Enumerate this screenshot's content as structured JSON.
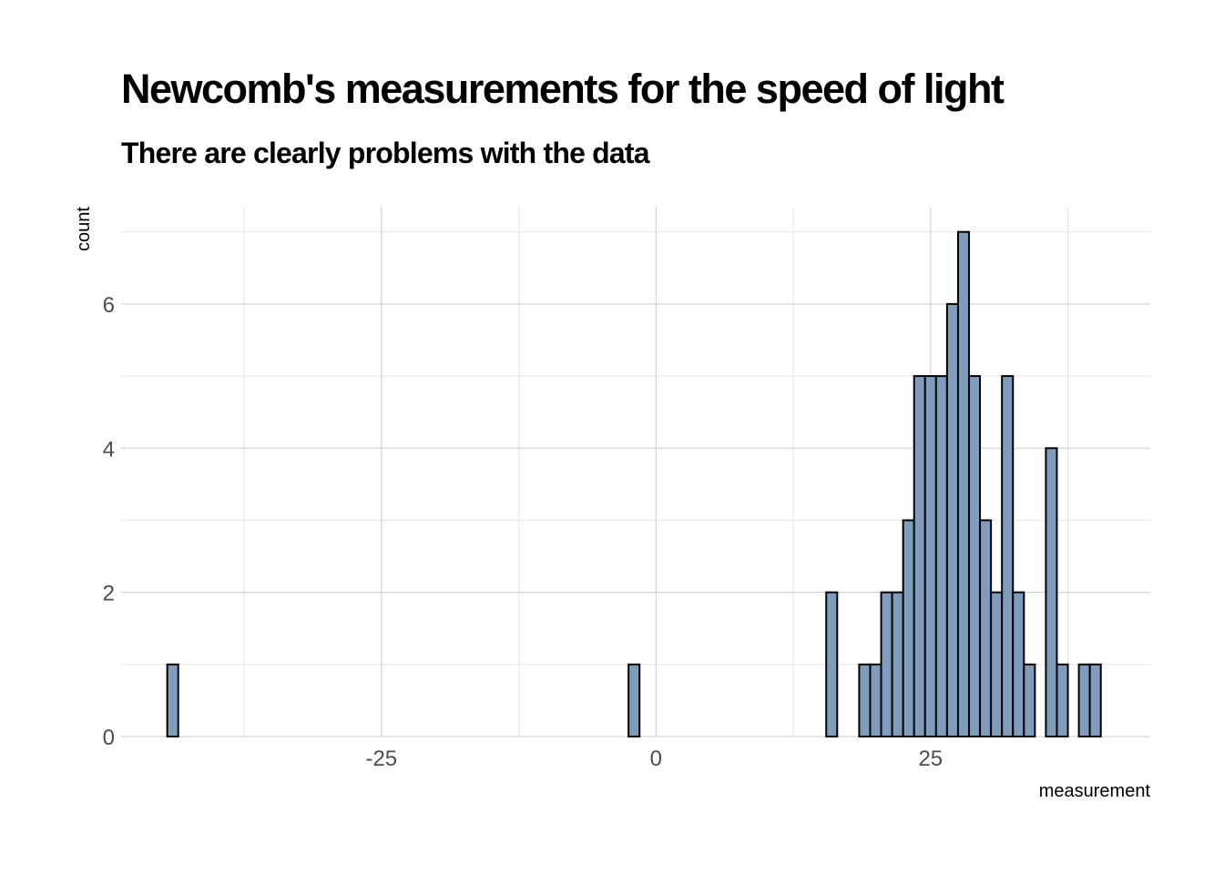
{
  "chart_data": {
    "type": "bar",
    "title": "Newcomb's measurements for the speed of light",
    "subtitle": "There are clearly problems with the data",
    "xlabel": "measurement",
    "ylabel": "count",
    "binwidth": 1,
    "xlim": [
      -48.7,
      45.0
    ],
    "ylim": [
      0,
      7.35
    ],
    "x_ticks": [
      -25,
      0,
      25
    ],
    "x_tick_labels": [
      "-25",
      "0",
      "25"
    ],
    "y_ticks": [
      0,
      2,
      4,
      6
    ],
    "y_tick_labels": [
      "0",
      "2",
      "4",
      "6"
    ],
    "bin_start": -44.5,
    "counts": [
      1,
      0,
      0,
      0,
      0,
      0,
      0,
      0,
      0,
      0,
      0,
      0,
      0,
      0,
      0,
      0,
      0,
      0,
      0,
      0,
      0,
      0,
      0,
      0,
      0,
      0,
      0,
      0,
      0,
      0,
      0,
      0,
      0,
      0,
      0,
      0,
      0,
      0,
      0,
      0,
      0,
      0,
      1,
      0,
      0,
      0,
      0,
      0,
      0,
      0,
      0,
      0,
      0,
      0,
      0,
      0,
      0,
      0,
      0,
      0,
      2,
      0,
      0,
      1,
      1,
      2,
      2,
      3,
      5,
      5,
      5,
      6,
      7,
      5,
      3,
      2,
      5,
      2,
      1,
      0,
      4,
      1,
      0,
      1,
      1
    ],
    "grid": true,
    "legend": "none"
  }
}
